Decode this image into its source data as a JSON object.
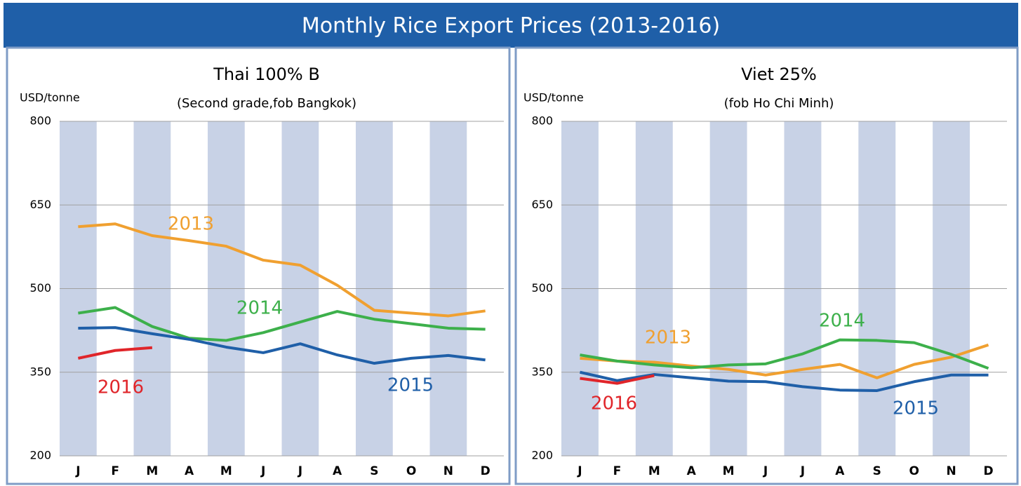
{
  "title": "Monthly Rice Export Prices (2013-2016)",
  "chart_data": [
    {
      "type": "line",
      "title": "Thai 100% B",
      "subtitle": "(Second grade,fob Bangkok)",
      "y_label": "USD/tonne",
      "categories": [
        "J",
        "F",
        "M",
        "A",
        "M",
        "J",
        "J",
        "A",
        "S",
        "O",
        "N",
        "D"
      ],
      "ylim": [
        200,
        800
      ],
      "yticks": [
        200,
        350,
        500,
        650,
        800
      ],
      "grid": true,
      "series": [
        {
          "name": "2013",
          "color": "#f0a030",
          "values": [
            611,
            616,
            595,
            586,
            576,
            551,
            542,
            506,
            461,
            456,
            451,
            460
          ]
        },
        {
          "name": "2014",
          "color": "#3db04b",
          "values": [
            456,
            466,
            432,
            411,
            407,
            421,
            440,
            459,
            445,
            437,
            429,
            427
          ]
        },
        {
          "name": "2015",
          "color": "#1f5fa8",
          "values": [
            429,
            430,
            419,
            409,
            395,
            385,
            401,
            381,
            366,
            375,
            380,
            372
          ]
        },
        {
          "name": "2016",
          "color": "#e0252a",
          "values": [
            375,
            389,
            394,
            null,
            null,
            null,
            null,
            null,
            null,
            null,
            null,
            null
          ]
        }
      ]
    },
    {
      "type": "line",
      "title": "Viet 25%",
      "subtitle": "(fob Ho Chi Minh)",
      "y_label": "USD/tonne",
      "categories": [
        "J",
        "F",
        "M",
        "A",
        "M",
        "J",
        "J",
        "A",
        "S",
        "O",
        "N",
        "D"
      ],
      "ylim": [
        200,
        800
      ],
      "yticks": [
        200,
        350,
        500,
        650,
        800
      ],
      "grid": true,
      "series": [
        {
          "name": "2013",
          "color": "#f0a030",
          "values": [
            375,
            370,
            368,
            361,
            355,
            345,
            355,
            364,
            340,
            364,
            377,
            399
          ]
        },
        {
          "name": "2014",
          "color": "#3db04b",
          "values": [
            381,
            370,
            363,
            358,
            363,
            365,
            383,
            408,
            407,
            403,
            382,
            357
          ]
        },
        {
          "name": "2015",
          "color": "#1f5fa8",
          "values": [
            350,
            335,
            346,
            340,
            334,
            333,
            324,
            318,
            317,
            333,
            345,
            345
          ]
        },
        {
          "name": "2016",
          "color": "#e0252a",
          "values": [
            339,
            330,
            344,
            null,
            null,
            null,
            null,
            null,
            null,
            null,
            null,
            null
          ]
        }
      ]
    }
  ]
}
